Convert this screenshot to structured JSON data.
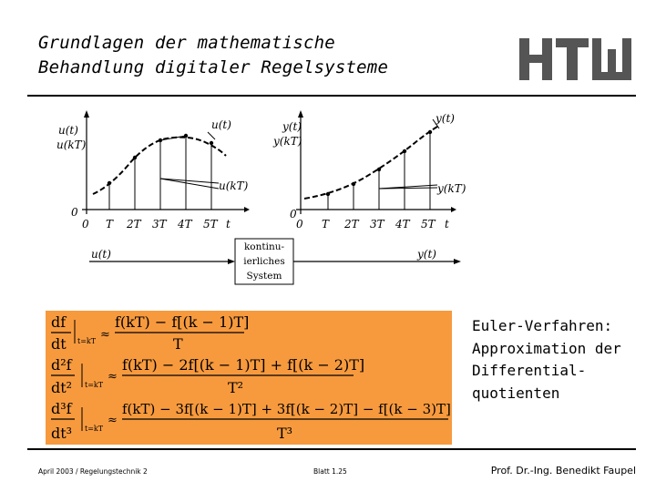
{
  "header": {
    "title_line1": "Grundlagen der mathematische",
    "title_line2": "Behandlung digitaler Regelsysteme"
  },
  "figure": {
    "left_plot": {
      "y_labels": [
        "u(t)",
        "u(kT)",
        "0"
      ],
      "x_ticks": [
        "0",
        "T",
        "2T",
        "3T",
        "4T",
        "5T",
        "t"
      ],
      "annotations": [
        "u(t)",
        "u(kT)"
      ]
    },
    "right_plot": {
      "y_labels": [
        "y(t)",
        "y(kT)",
        "0"
      ],
      "x_ticks": [
        "0",
        "T",
        "2T",
        "3T",
        "4T",
        "5T",
        "t"
      ],
      "annotations": [
        "y(t)",
        "y(kT)"
      ]
    },
    "block": {
      "input_label": "u(t)",
      "output_label": "y(t)",
      "line1": "kontinu-",
      "line2": "ierliches",
      "line3": "System"
    }
  },
  "formulas": {
    "approx": "≈",
    "eval_at": "t=kT",
    "f1_num": "df",
    "f1_den": "dt",
    "f1_rhs_num": "f(kT) − f[(k − 1)T]",
    "f1_rhs_den": "T",
    "f2_num": "d²f",
    "f2_den": "dt²",
    "f2_rhs_num": "f(kT) − 2f[(k − 1)T] + f[(k − 2)T]",
    "f2_rhs_den": "T²",
    "f3_num": "d³f",
    "f3_den": "dt³",
    "f3_rhs_num": "f(kT) − 3f[(k − 1)T] + 3f[(k − 2)T] − f[(k − 3)T]",
    "f3_rhs_den": "T³"
  },
  "side_text": {
    "line1": "Euler-Verfahren:",
    "line2": "Approximation der",
    "line3": "Differential-",
    "line4": "quotienten"
  },
  "footer": {
    "left": "April 2003 / Regelungstechnik 2",
    "center": "Blatt 1.25",
    "right": "Prof. Dr.-Ing. Benedikt Faupel"
  },
  "colors": {
    "formula_background": "#f79a3e",
    "logo": "#555555"
  }
}
